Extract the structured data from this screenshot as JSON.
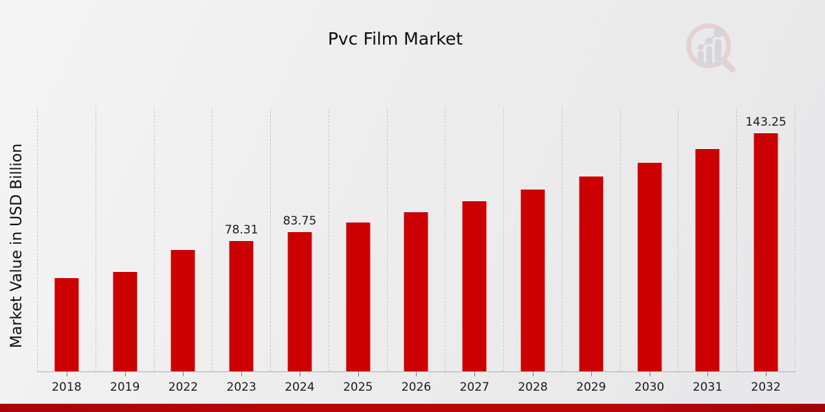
{
  "title": "Pvc Film Market",
  "y_axis_label": "Market Value in USD Billion",
  "colors": {
    "bar": "#cc0000",
    "footer_strip": "#b70606",
    "gridline": "#c9c9c9",
    "text": "#1a1a1a",
    "logo_ring": "#e2bebe",
    "logo_gray": "#c3c7cf"
  },
  "icons": {
    "watermark": "magnifier-bar-chart-logo-icon"
  },
  "chart_data": {
    "type": "bar",
    "title": "Pvc Film Market",
    "xlabel": "",
    "ylabel": "Market Value in USD Billion",
    "categories": [
      "2018",
      "2019",
      "2022",
      "2023",
      "2024",
      "2025",
      "2026",
      "2027",
      "2028",
      "2029",
      "2030",
      "2031",
      "2032"
    ],
    "values": [
      56.0,
      59.9,
      73.2,
      78.31,
      83.75,
      89.6,
      95.8,
      102.4,
      109.5,
      117.1,
      125.3,
      133.9,
      143.25
    ],
    "data_labels": [
      "",
      "",
      "",
      "78.31",
      "83.75",
      "",
      "",
      "",
      "",
      "",
      "",
      "",
      "143.25"
    ],
    "ylim": [
      0,
      158.5
    ],
    "y_ticks_visible": false,
    "grid": "vertical-dashed",
    "legend": "none",
    "bar_color": "#cc0000"
  }
}
